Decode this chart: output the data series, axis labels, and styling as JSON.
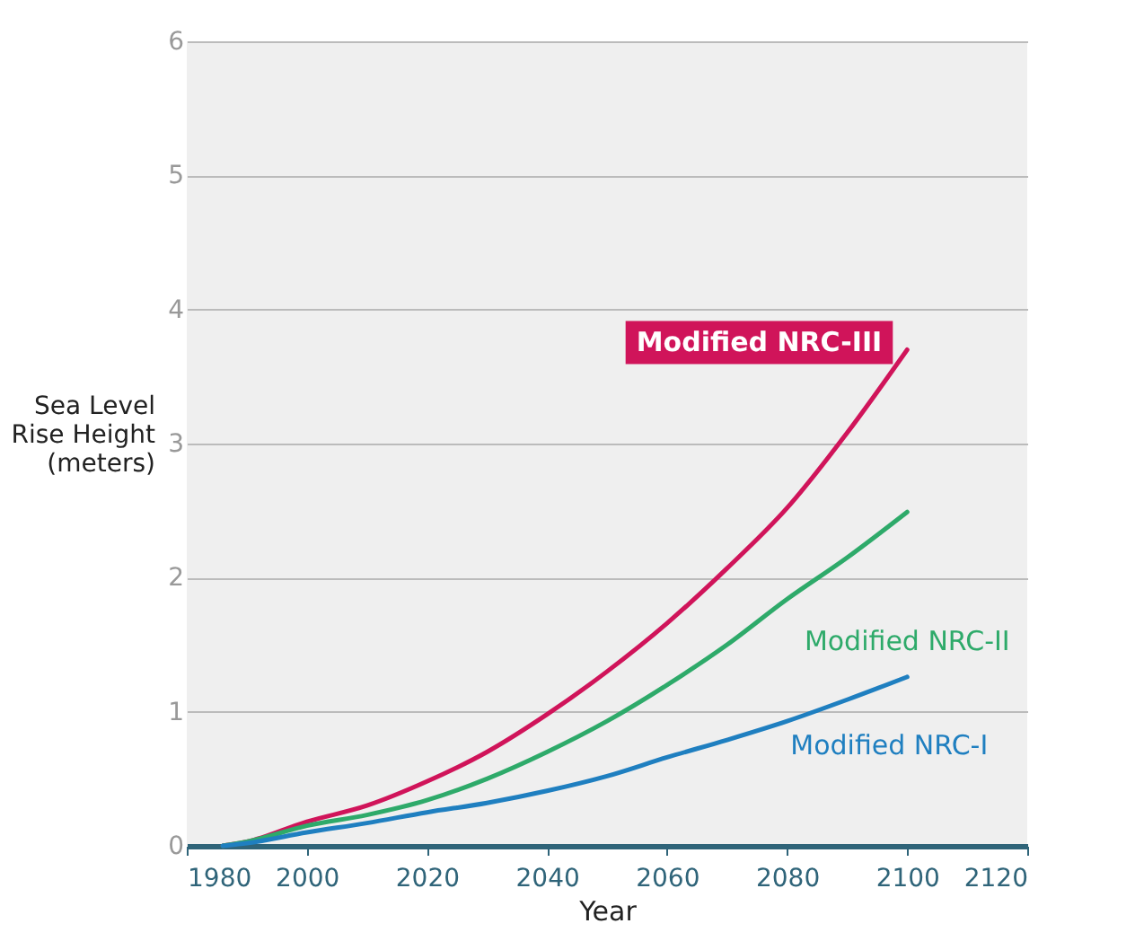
{
  "chart_data": {
    "type": "line",
    "xlabel": "Year",
    "ylabel": "Sea Level Rise Height (meters)",
    "x": [
      1986,
      1990,
      2000,
      2010,
      2020,
      2030,
      2040,
      2050,
      2060,
      2070,
      2080,
      2090,
      2100
    ],
    "series": [
      {
        "name": "Modified NRC-III",
        "color": "#d0145a",
        "values": [
          0,
          0.03,
          0.18,
          0.3,
          0.48,
          0.7,
          0.98,
          1.3,
          1.66,
          2.07,
          2.52,
          3.08,
          3.7
        ]
      },
      {
        "name": "Modified NRC-II",
        "color": "#2eaa6a",
        "values": [
          0,
          0.03,
          0.15,
          0.23,
          0.34,
          0.5,
          0.7,
          0.93,
          1.2,
          1.5,
          1.84,
          2.15,
          2.49
        ]
      },
      {
        "name": "Modified NRC-I",
        "color": "#1f7fc0",
        "values": [
          0,
          0.02,
          0.1,
          0.17,
          0.25,
          0.32,
          0.41,
          0.52,
          0.66,
          0.79,
          0.93,
          1.09,
          1.26
        ]
      }
    ],
    "xlim": [
      1980,
      2120
    ],
    "xticks": [
      1980,
      2000,
      2020,
      2040,
      2060,
      2080,
      2100,
      2120
    ],
    "ylim": [
      0,
      6
    ],
    "yticks": [
      0,
      1,
      2,
      3,
      4,
      5,
      6
    ],
    "grid": "y",
    "legend": false
  }
}
